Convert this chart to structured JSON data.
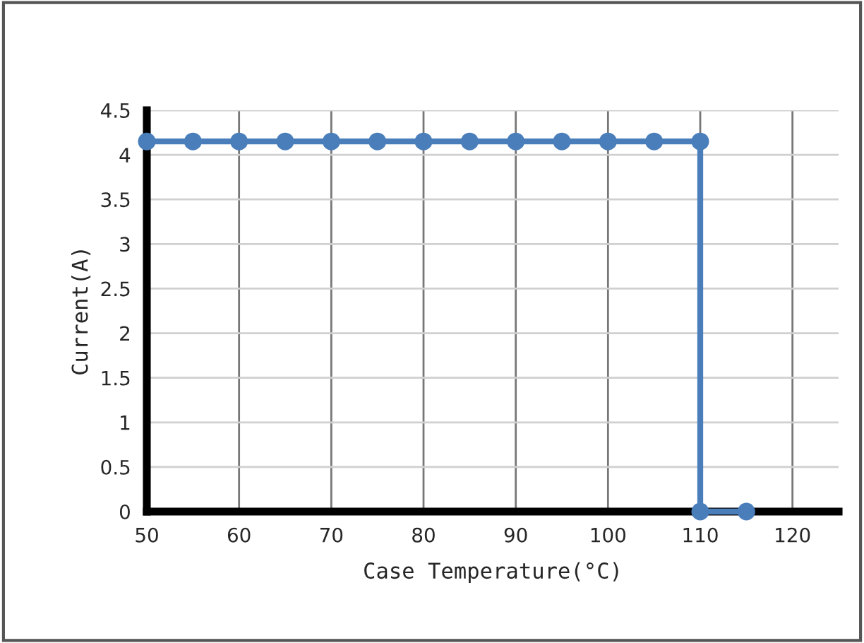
{
  "chart_data": {
    "type": "line",
    "xlabel": "Case Temperature(°C)",
    "ylabel": "Current(A)",
    "x": [
      50,
      55,
      60,
      65,
      70,
      75,
      80,
      85,
      90,
      95,
      100,
      105,
      110,
      110,
      115
    ],
    "series": [
      {
        "color": "#4a7ebb",
        "values": [
          4.15,
          4.15,
          4.15,
          4.15,
          4.15,
          4.15,
          4.15,
          4.15,
          4.15,
          4.15,
          4.15,
          4.15,
          4.15,
          0,
          0
        ]
      }
    ],
    "xlim": [
      50,
      125
    ],
    "xticks": [
      50,
      60,
      70,
      80,
      90,
      100,
      110,
      120
    ],
    "ylim": [
      0,
      4.5
    ],
    "yticks": [
      0,
      0.5,
      1,
      1.5,
      2,
      2.5,
      3,
      3.5,
      4,
      4.5
    ],
    "grid": true,
    "marker": "circle",
    "line_style": "solid",
    "legend": false
  }
}
